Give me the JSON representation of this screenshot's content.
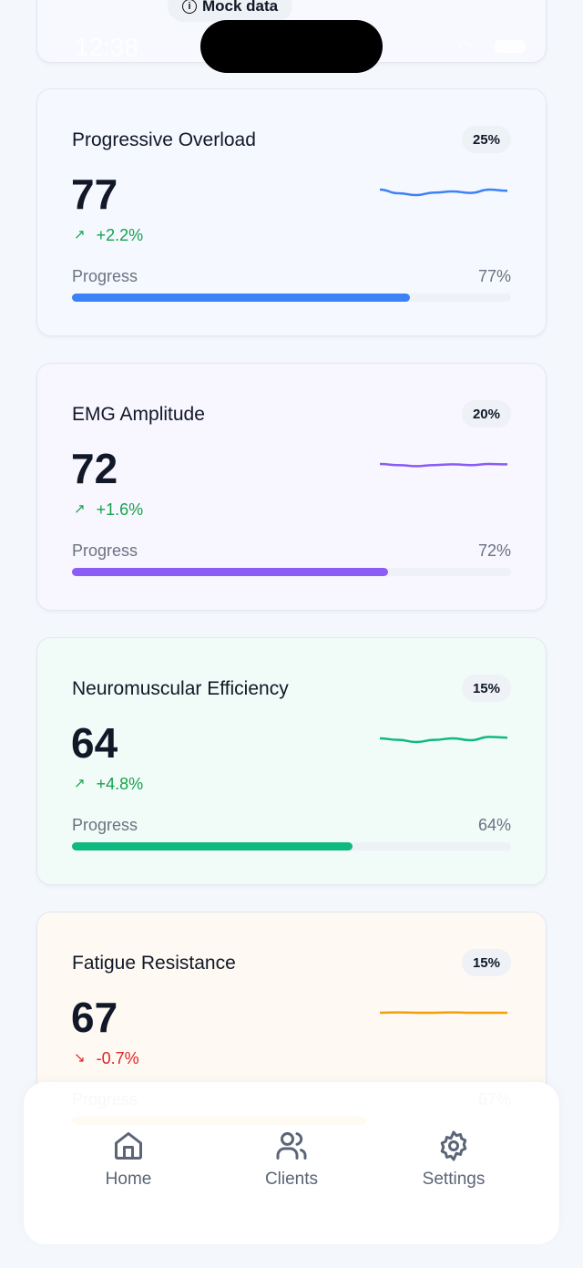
{
  "status_bar": {
    "time": "12:38"
  },
  "header": {
    "mock_label": "Mock data",
    "mock_icon": "info-icon"
  },
  "cards": [
    {
      "title": "Progressive Overload",
      "weight": "25%",
      "value": "77",
      "change": "+2.2%",
      "trend": "up",
      "progress_label": "Progress",
      "progress": 77,
      "progress_text": "77%",
      "color": "#3b82f6",
      "bg": "#f5f8ff",
      "spark": [
        50,
        49,
        48.5,
        49.2,
        49.5,
        49.1,
        50,
        49.7
      ]
    },
    {
      "title": "EMG Amplitude",
      "weight": "20%",
      "value": "72",
      "change": "+1.6%",
      "trend": "up",
      "progress_label": "Progress",
      "progress": 72,
      "progress_text": "72%",
      "color": "#8b5cf6",
      "bg": "#f8f6ff",
      "spark": [
        50,
        49.7,
        49.4,
        49.7,
        49.9,
        49.7,
        50,
        49.9
      ]
    },
    {
      "title": "Neuromuscular Efficiency",
      "weight": "15%",
      "value": "64",
      "change": "+4.8%",
      "trend": "up",
      "progress_label": "Progress",
      "progress": 64,
      "progress_text": "64%",
      "color": "#10b981",
      "bg": "#f1fbf8",
      "spark": [
        50,
        49.6,
        49,
        49.6,
        50,
        49.5,
        50.4,
        50.2
      ]
    },
    {
      "title": "Fatigue Resistance",
      "weight": "15%",
      "value": "67",
      "change": "-0.7%",
      "trend": "down",
      "progress_label": "Progress",
      "progress": 67,
      "progress_text": "67%",
      "color": "#f59e0b",
      "bg": "#fff9f3",
      "spark": [
        50,
        50.1,
        50,
        50,
        50.1,
        50,
        50,
        50
      ]
    }
  ],
  "nav": [
    {
      "label": "Home",
      "icon": "home-icon"
    },
    {
      "label": "Clients",
      "icon": "users-icon"
    },
    {
      "label": "Settings",
      "icon": "gear-icon"
    }
  ],
  "colors": {
    "up": "#16a34a",
    "down": "#dc2626"
  }
}
